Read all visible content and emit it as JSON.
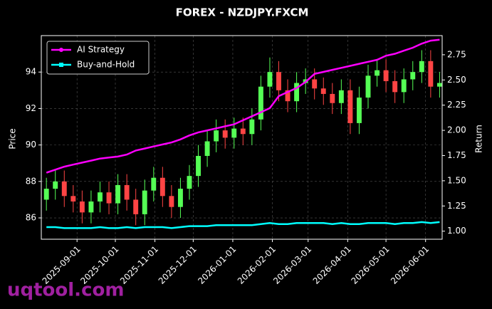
{
  "chart_data": {
    "type": "candlestick-returns",
    "title": "FOREX - NZDJPY.FXCM",
    "y_label": "Price",
    "y2_label": "Return",
    "watermark": "uqtool.com",
    "x": [
      "2025-08-08",
      "2025-08-15",
      "2025-08-22",
      "2025-08-29",
      "2025-09-05",
      "2025-09-12",
      "2025-09-19",
      "2025-09-26",
      "2025-10-03",
      "2025-10-10",
      "2025-10-17",
      "2025-10-24",
      "2025-10-31",
      "2025-11-07",
      "2025-11-14",
      "2025-11-21",
      "2025-11-28",
      "2025-12-05",
      "2025-12-12",
      "2025-12-19",
      "2025-12-26",
      "2026-01-02",
      "2026-01-09",
      "2026-01-16",
      "2026-01-23",
      "2026-01-30",
      "2026-02-06",
      "2026-02-13",
      "2026-02-20",
      "2026-02-27",
      "2026-03-06",
      "2026-03-13",
      "2026-03-20",
      "2026-03-27",
      "2026-04-03",
      "2026-04-10",
      "2026-04-17",
      "2026-04-24",
      "2026-05-01",
      "2026-05-08",
      "2026-05-15",
      "2026-05-22",
      "2026-05-29",
      "2026-06-05",
      "2026-06-12"
    ],
    "open": [
      87.0,
      87.6,
      88.0,
      87.2,
      86.9,
      86.3,
      86.9,
      87.4,
      86.8,
      87.8,
      87.0,
      86.2,
      87.5,
      88.2,
      87.2,
      86.6,
      87.6,
      88.3,
      89.4,
      90.2,
      90.8,
      90.4,
      90.9,
      90.6,
      91.4,
      93.2,
      94.0,
      93.0,
      92.4,
      93.4,
      93.6,
      93.1,
      92.8,
      92.3,
      93.0,
      91.2,
      92.6,
      93.8,
      94.1,
      93.5,
      92.9,
      93.6,
      94.0,
      94.6,
      93.2
    ],
    "high": [
      88.2,
      88.6,
      88.6,
      87.8,
      87.5,
      87.5,
      88.0,
      88.0,
      88.4,
      88.4,
      87.6,
      88.1,
      88.8,
      88.8,
      87.8,
      88.2,
      88.9,
      90.0,
      90.8,
      91.4,
      91.4,
      91.5,
      91.5,
      92.0,
      93.8,
      94.8,
      94.6,
      93.6,
      94.0,
      94.2,
      94.2,
      93.7,
      93.4,
      93.6,
      93.6,
      93.2,
      94.4,
      94.7,
      94.7,
      94.1,
      94.2,
      94.6,
      95.2,
      95.2,
      94.0
    ],
    "low": [
      86.4,
      87.0,
      86.6,
      86.3,
      85.7,
      85.7,
      86.3,
      86.2,
      86.2,
      86.4,
      85.6,
      85.6,
      86.9,
      86.6,
      86.0,
      86.0,
      87.0,
      87.7,
      88.8,
      89.6,
      89.8,
      89.8,
      90.0,
      90.0,
      90.8,
      92.6,
      92.4,
      91.8,
      91.8,
      92.8,
      92.5,
      92.2,
      91.7,
      91.7,
      90.6,
      90.6,
      92.0,
      93.2,
      92.9,
      92.3,
      92.3,
      93.0,
      93.4,
      92.6,
      92.6
    ],
    "close": [
      87.6,
      88.0,
      87.2,
      86.9,
      86.3,
      86.9,
      87.4,
      86.8,
      87.8,
      87.0,
      86.2,
      87.5,
      88.2,
      87.2,
      86.6,
      87.6,
      88.3,
      89.4,
      90.2,
      90.8,
      90.4,
      90.9,
      90.6,
      91.4,
      93.2,
      94.0,
      93.0,
      92.4,
      93.4,
      93.6,
      93.1,
      92.8,
      92.3,
      93.0,
      91.2,
      92.6,
      93.8,
      94.1,
      93.5,
      92.9,
      93.6,
      94.0,
      94.6,
      93.2,
      93.4
    ],
    "up_color": "#55ff55",
    "down_color": "#ff4444",
    "series": [
      {
        "name": "AI Strategy",
        "color": "#ff00ff",
        "axis": "y2",
        "marker": "circle",
        "values": [
          1.58,
          1.61,
          1.64,
          1.66,
          1.68,
          1.7,
          1.72,
          1.73,
          1.74,
          1.76,
          1.8,
          1.82,
          1.84,
          1.86,
          1.88,
          1.91,
          1.95,
          1.98,
          2.0,
          2.02,
          2.04,
          2.06,
          2.1,
          2.14,
          2.18,
          2.22,
          2.34,
          2.38,
          2.42,
          2.48,
          2.56,
          2.58,
          2.6,
          2.62,
          2.64,
          2.66,
          2.68,
          2.7,
          2.74,
          2.76,
          2.79,
          2.82,
          2.86,
          2.89,
          2.9
        ]
      },
      {
        "name": "Buy-and-Hold",
        "color": "#00ffff",
        "axis": "y2",
        "marker": "square",
        "values": [
          1.04,
          1.04,
          1.03,
          1.03,
          1.03,
          1.03,
          1.04,
          1.03,
          1.03,
          1.04,
          1.03,
          1.04,
          1.04,
          1.04,
          1.03,
          1.04,
          1.05,
          1.05,
          1.05,
          1.06,
          1.06,
          1.06,
          1.06,
          1.06,
          1.07,
          1.08,
          1.07,
          1.07,
          1.08,
          1.08,
          1.08,
          1.08,
          1.07,
          1.08,
          1.07,
          1.07,
          1.08,
          1.08,
          1.08,
          1.07,
          1.08,
          1.08,
          1.09,
          1.08,
          1.09
        ]
      }
    ],
    "xlim": [
      "2025-08-04",
      "2026-06-14"
    ],
    "xticks": [
      "2025-09-01",
      "2025-10-01",
      "2025-11-01",
      "2025-12-01",
      "2026-01-01",
      "2026-02-01",
      "2026-03-01",
      "2026-04-01",
      "2026-05-01",
      "2026-06-01"
    ],
    "ylim": [
      84.83,
      96.0
    ],
    "yticks": [
      86,
      88,
      90,
      92,
      94
    ],
    "y2lim": [
      0.92,
      2.94
    ],
    "y2ticks": [
      {
        "value": 1.0,
        "label": "1.00"
      },
      1.25,
      {
        "value": 1.5,
        "label": "1.50"
      },
      1.75,
      {
        "value": 2.0,
        "label": "2.00"
      },
      2.25,
      {
        "value": 2.5,
        "label": "2.50"
      },
      2.75
    ],
    "grid": true,
    "legend": "upper-left"
  }
}
